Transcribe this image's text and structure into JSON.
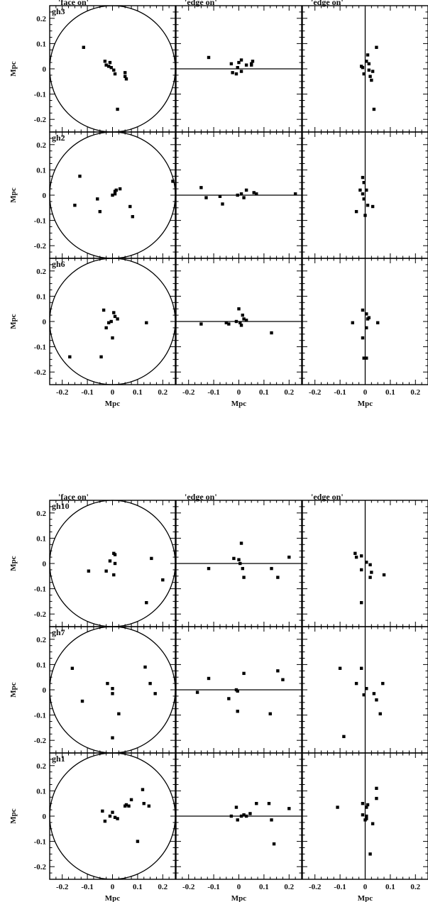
{
  "chart_data": [
    {
      "type": "scatter",
      "figure": "top",
      "column_titles": [
        "'face on'",
        "'edge on'",
        "'edge on'"
      ],
      "xlabel": "Mpc",
      "ylabel": "Mpc",
      "xlim": [
        -0.25,
        0.25
      ],
      "ylim": [
        -0.25,
        0.25
      ],
      "xticklabels": [
        "-0.2",
        "-0.1",
        "0",
        "0.1",
        "0.2"
      ],
      "yticklabels": [
        "-0.2",
        "-0.1",
        "0",
        "0.1",
        "0.2"
      ],
      "groups": [
        {
          "name": "gh3",
          "face_on": [
            [
              -0.115,
              0.085
            ],
            [
              -0.03,
              0.03
            ],
            [
              -0.01,
              0.025
            ],
            [
              -0.025,
              0.015
            ],
            [
              -0.015,
              0.01
            ],
            [
              -0.005,
              0.005
            ],
            [
              0.005,
              -0.005
            ],
            [
              0.01,
              -0.02
            ],
            [
              0.05,
              -0.015
            ],
            [
              0.055,
              -0.04
            ],
            [
              0.05,
              -0.03
            ],
            [
              0.02,
              -0.16
            ]
          ],
          "edge_on_1": [
            [
              -0.12,
              0.045
            ],
            [
              -0.03,
              0.02
            ],
            [
              -0.025,
              -0.015
            ],
            [
              -0.01,
              -0.02
            ],
            [
              0,
              0.025
            ],
            [
              0.01,
              0.035
            ],
            [
              0.01,
              -0.01
            ],
            [
              0.03,
              0.015
            ],
            [
              0.05,
              0.02
            ],
            [
              0.055,
              0.03
            ],
            [
              0.05,
              0.015
            ],
            [
              -0.005,
              0.005
            ]
          ],
          "edge_on_2": [
            [
              -0.015,
              0.01
            ],
            [
              -0.005,
              -0.02
            ],
            [
              -0.01,
              0.005
            ],
            [
              0.005,
              0.03
            ],
            [
              0.01,
              0.055
            ],
            [
              0.015,
              0.02
            ],
            [
              0.02,
              -0.03
            ],
            [
              0.025,
              -0.045
            ],
            [
              0.045,
              0.085
            ],
            [
              0.03,
              -0.01
            ],
            [
              0.035,
              -0.16
            ],
            [
              0.015,
              -0.005
            ]
          ]
        },
        {
          "name": "gh2",
          "face_on": [
            [
              -0.13,
              0.075
            ],
            [
              -0.15,
              -0.04
            ],
            [
              -0.06,
              -0.015
            ],
            [
              -0.05,
              -0.065
            ],
            [
              0,
              0
            ],
            [
              0.01,
              0.015
            ],
            [
              0.015,
              0.02
            ],
            [
              0.03,
              0.025
            ],
            [
              0.07,
              -0.045
            ],
            [
              0.08,
              -0.085
            ],
            [
              0.24,
              0.055
            ],
            [
              0.01,
              0.005
            ]
          ],
          "edge_on_1": [
            [
              -0.15,
              0.03
            ],
            [
              -0.13,
              -0.01
            ],
            [
              -0.075,
              -0.005
            ],
            [
              -0.065,
              -0.035
            ],
            [
              -0.005,
              0
            ],
            [
              0.01,
              0.005
            ],
            [
              0.02,
              -0.01
            ],
            [
              0.03,
              0.02
            ],
            [
              0.06,
              0.01
            ],
            [
              0.07,
              0.005
            ],
            [
              0.225,
              0.005
            ]
          ],
          "edge_on_2": [
            [
              -0.035,
              -0.065
            ],
            [
              -0.02,
              0.02
            ],
            [
              -0.01,
              0.07
            ],
            [
              -0.005,
              0.05
            ],
            [
              -0.005,
              -0.015
            ],
            [
              0.005,
              0.02
            ],
            [
              0.01,
              -0.04
            ],
            [
              0,
              -0.08
            ],
            [
              0.03,
              -0.045
            ],
            [
              -0.01,
              0.005
            ]
          ]
        },
        {
          "name": "gh6",
          "face_on": [
            [
              -0.035,
              0.045
            ],
            [
              -0.025,
              -0.025
            ],
            [
              -0.015,
              -0.005
            ],
            [
              -0.005,
              0
            ],
            [
              0.005,
              0.035
            ],
            [
              0.01,
              0.02
            ],
            [
              0.02,
              0.01
            ],
            [
              0,
              -0.065
            ],
            [
              0.135,
              -0.005
            ],
            [
              -0.17,
              -0.14
            ],
            [
              -0.045,
              -0.14
            ]
          ],
          "edge_on_1": [
            [
              -0.15,
              -0.01
            ],
            [
              -0.05,
              -0.005
            ],
            [
              -0.04,
              -0.01
            ],
            [
              0,
              0.05
            ],
            [
              0.005,
              -0.005
            ],
            [
              0.015,
              0.025
            ],
            [
              0.02,
              0.01
            ],
            [
              0.03,
              0.005
            ],
            [
              0.13,
              -0.045
            ],
            [
              -0.01,
              0
            ],
            [
              0.01,
              -0.015
            ]
          ],
          "edge_on_2": [
            [
              -0.05,
              -0.005
            ],
            [
              -0.01,
              0.045
            ],
            [
              -0.01,
              -0.065
            ],
            [
              -0.005,
              -0.145
            ],
            [
              0.005,
              -0.145
            ],
            [
              0.005,
              0.03
            ],
            [
              0.01,
              0.01
            ],
            [
              0.015,
              0.015
            ],
            [
              0.05,
              -0.005
            ],
            [
              0.005,
              -0.025
            ]
          ]
        }
      ]
    },
    {
      "type": "scatter",
      "figure": "bottom",
      "column_titles": [
        "'face on'",
        "'edge on'",
        "'edge on'"
      ],
      "xlabel": "Mpc",
      "ylabel": "Mpc",
      "xlim": [
        -0.25,
        0.25
      ],
      "ylim": [
        -0.25,
        0.25
      ],
      "xticklabels": [
        "-0.2",
        "-0.1",
        "0",
        "0.1",
        "0.2"
      ],
      "yticklabels": [
        "-0.2",
        "-0.1",
        "0",
        "0.1",
        "0.2"
      ],
      "groups": [
        {
          "name": "gh10",
          "face_on": [
            [
              -0.095,
              -0.03
            ],
            [
              -0.025,
              -0.03
            ],
            [
              -0.01,
              0.01
            ],
            [
              0.005,
              0.04
            ],
            [
              0.01,
              0.035
            ],
            [
              0.005,
              -0.045
            ],
            [
              0.155,
              0.02
            ],
            [
              0.135,
              -0.155
            ],
            [
              0.2,
              -0.065
            ],
            [
              0.01,
              0
            ]
          ],
          "edge_on_1": [
            [
              -0.12,
              -0.02
            ],
            [
              -0.02,
              0.02
            ],
            [
              0,
              0.015
            ],
            [
              0.01,
              0.08
            ],
            [
              0.015,
              -0.02
            ],
            [
              0.02,
              -0.055
            ],
            [
              0.13,
              -0.02
            ],
            [
              0.155,
              -0.055
            ],
            [
              0.2,
              0.025
            ],
            [
              0.005,
              0
            ]
          ],
          "edge_on_2": [
            [
              -0.04,
              0.04
            ],
            [
              -0.035,
              0.025
            ],
            [
              -0.015,
              0.03
            ],
            [
              -0.015,
              -0.025
            ],
            [
              0.005,
              0.005
            ],
            [
              -0.015,
              -0.155
            ],
            [
              0.02,
              -0.005
            ],
            [
              0.025,
              -0.035
            ],
            [
              0.02,
              -0.055
            ],
            [
              0.075,
              -0.045
            ]
          ]
        },
        {
          "name": "gh7",
          "face_on": [
            [
              -0.16,
              0.085
            ],
            [
              -0.12,
              -0.045
            ],
            [
              -0.02,
              0.025
            ],
            [
              0,
              0.005
            ],
            [
              0,
              -0.015
            ],
            [
              0.025,
              -0.095
            ],
            [
              0,
              -0.19
            ],
            [
              0.13,
              0.09
            ],
            [
              0.15,
              0.025
            ],
            [
              0.17,
              -0.015
            ]
          ],
          "edge_on_1": [
            [
              -0.165,
              -0.01
            ],
            [
              -0.12,
              0.045
            ],
            [
              -0.04,
              -0.035
            ],
            [
              -0.01,
              0
            ],
            [
              -0.005,
              -0.085
            ],
            [
              0.02,
              0.065
            ],
            [
              0.125,
              -0.095
            ],
            [
              0.155,
              0.075
            ],
            [
              0.175,
              0.04
            ],
            [
              -0.005,
              -0.005
            ]
          ],
          "edge_on_2": [
            [
              -0.1,
              0.085
            ],
            [
              -0.085,
              -0.185
            ],
            [
              -0.035,
              0.025
            ],
            [
              -0.015,
              0.085
            ],
            [
              -0.005,
              -0.02
            ],
            [
              0.005,
              0.005
            ],
            [
              0.035,
              -0.015
            ],
            [
              0.045,
              -0.04
            ],
            [
              0.06,
              -0.095
            ],
            [
              0.07,
              0.025
            ]
          ]
        },
        {
          "name": "gh1",
          "face_on": [
            [
              -0.04,
              0.02
            ],
            [
              -0.03,
              -0.02
            ],
            [
              -0.01,
              0
            ],
            [
              0,
              0.015
            ],
            [
              0.01,
              -0.005
            ],
            [
              0.02,
              -0.01
            ],
            [
              0.05,
              0.04
            ],
            [
              0.055,
              0.045
            ],
            [
              0.075,
              0.065
            ],
            [
              0.1,
              -0.1
            ],
            [
              0.12,
              0.105
            ],
            [
              0.125,
              0.05
            ],
            [
              0.145,
              0.04
            ],
            [
              0.065,
              0.04
            ]
          ],
          "edge_on_1": [
            [
              -0.03,
              0
            ],
            [
              -0.01,
              0.035
            ],
            [
              -0.005,
              -0.015
            ],
            [
              0.01,
              0
            ],
            [
              0.03,
              0
            ],
            [
              0.045,
              0.01
            ],
            [
              0.07,
              0.05
            ],
            [
              0.12,
              0.05
            ],
            [
              0.13,
              -0.015
            ],
            [
              0.14,
              -0.11
            ],
            [
              0.2,
              0.03
            ],
            [
              0.02,
              0.005
            ]
          ],
          "edge_on_2": [
            [
              -0.11,
              0.035
            ],
            [
              -0.01,
              0.05
            ],
            [
              -0.01,
              0.005
            ],
            [
              0,
              -0.015
            ],
            [
              0.005,
              -0.01
            ],
            [
              0.005,
              0.035
            ],
            [
              0.01,
              0.045
            ],
            [
              0.02,
              -0.15
            ],
            [
              0.03,
              -0.03
            ],
            [
              0.045,
              0.11
            ],
            [
              0.045,
              0.07
            ],
            [
              0.005,
              0
            ]
          ]
        }
      ]
    }
  ]
}
